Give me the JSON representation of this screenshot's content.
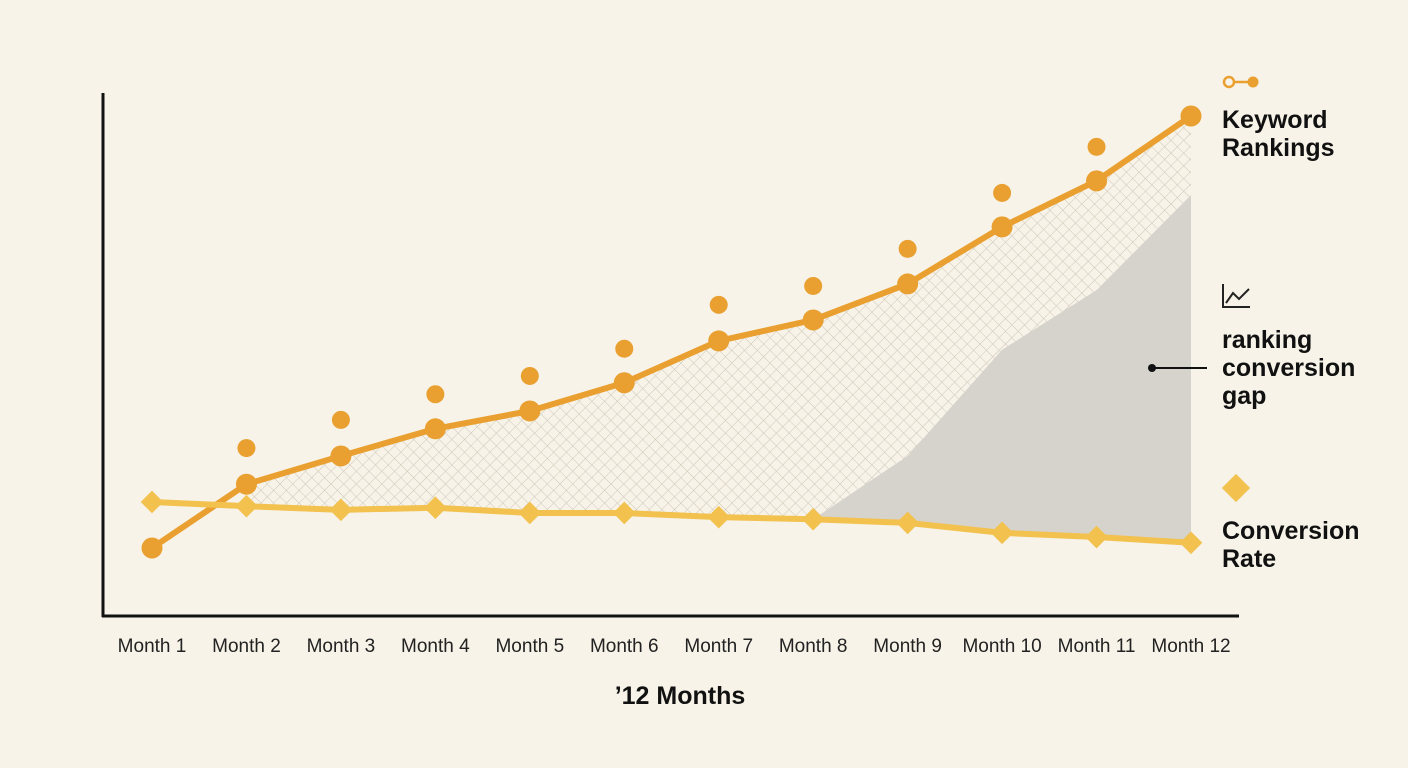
{
  "chart_data": {
    "type": "line",
    "x_label": "’12 Months",
    "categories": [
      "Month 1",
      "Month 2",
      "Month 3",
      "Month 4",
      "Month 5",
      "Month 6",
      "Month 7",
      "Month 8",
      "Month 9",
      "Month 10",
      "Month 11",
      "Month 12"
    ],
    "ylim": [
      0,
      100
    ],
    "series": [
      {
        "name": "Keyword Rankings",
        "color": "#e9a030",
        "marker": "circle",
        "values": [
          13,
          25.2,
          30.6,
          35.8,
          39.2,
          44.6,
          52.6,
          56.6,
          63.5,
          74.4,
          83.2,
          95.6
        ]
      },
      {
        "color": "#e9a030",
        "marker": "dot",
        "values": [
          null,
          32.1,
          37.5,
          42.4,
          45.9,
          51.1,
          59.5,
          63.1,
          70.2,
          80.9,
          89.7,
          null
        ]
      },
      {
        "name": "Conversion Rate",
        "color": "#f2c14e",
        "marker": "diamond",
        "values": [
          21.8,
          21.0,
          20.3,
          20.7,
          19.7,
          19.7,
          18.9,
          18.5,
          17.8,
          15.9,
          15.1,
          14.0
        ]
      }
    ],
    "gap": {
      "name": "ranking conversion gap",
      "color": "#d6d3cc",
      "values": [
        null,
        null,
        null,
        null,
        null,
        null,
        null,
        18.5,
        30.6,
        50.9,
        62.3,
        80.5
      ]
    }
  }
}
